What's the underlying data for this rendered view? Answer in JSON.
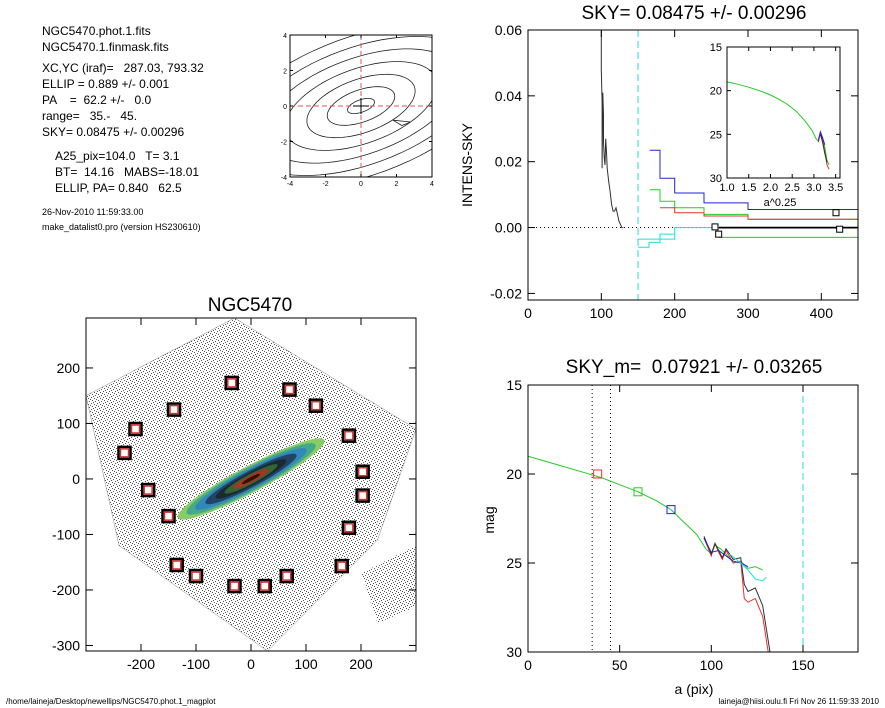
{
  "header": {
    "lines": [
      "NGC5470.phot.1.fits",
      "NGC5470.1.finmask.fits",
      "XC,YC (iraf)=   287.03, 793.32",
      "ELLIP = 0.889 +/- 0.001",
      "PA    =  62.2 +/-   0.0",
      "range=   35.-   45.",
      "SKY= 0.08475 +/- 0.00296",
      "A25_pix=104.0   T= 3.1",
      "BT=  14.16   MABS=-18.01",
      "ELLIP, PA= 0.840   62.5"
    ],
    "date_line": "26-Nov-2010 11:59:33.00",
    "version_line": "make_datalist0.pro (version HS230610)"
  },
  "footer": {
    "left": "/home/laineja/Desktop/newellips/NGC5470.phot.1_magplot",
    "right": "laineja@hiisi.oulu.fi  Fri Nov 26 11:59:33 2010"
  },
  "colors": {
    "red": "#e83030",
    "green": "#22cc22",
    "blue": "#2222dd",
    "cyan": "#22dddd",
    "black": "#000000",
    "dark": "#303030"
  },
  "chart_data": [
    {
      "id": "contour_panel",
      "type": "contour",
      "title": "",
      "xlim": [
        -4,
        4
      ],
      "ylim": [
        -4,
        4
      ],
      "xticks": [
        -4,
        -2,
        0,
        2,
        4
      ],
      "yticks": [
        -4,
        -2,
        0,
        2,
        4
      ],
      "tick_labels_x": [
        "-4",
        "-2",
        "0",
        "2",
        "4"
      ],
      "tick_labels_y": [
        "-4",
        "-2",
        "0",
        "2",
        "4"
      ],
      "guide_lines": {
        "x": 0,
        "y": 0,
        "color": "red",
        "style": "dashed"
      },
      "contour_angle_deg": 20,
      "contour_levels": [
        {
          "a": 0.8,
          "b": 0.35
        },
        {
          "a": 2.0,
          "b": 0.9
        },
        {
          "a": 3.2,
          "b": 1.5
        },
        {
          "a": 4.5,
          "b": 2.1
        },
        {
          "a": 5.8,
          "b": 2.7
        },
        {
          "a": 7.0,
          "b": 3.3
        },
        {
          "a": 8.3,
          "b": 3.9
        }
      ]
    },
    {
      "id": "galaxy_image",
      "type": "scatter",
      "title": "NGC5470",
      "xlim": [
        -300,
        300
      ],
      "ylim": [
        -310,
        290
      ],
      "xticks": [
        -200,
        -100,
        0,
        100,
        200
      ],
      "yticks": [
        -300,
        -200,
        -100,
        0,
        100,
        200
      ],
      "tick_labels_x": [
        "-200",
        "-100",
        "0",
        "100",
        "200"
      ],
      "tick_labels_y": [
        "-300",
        "-200",
        "-100",
        "0",
        "100",
        "200"
      ],
      "sky_boxes": [
        [
          -35,
          173
        ],
        [
          70,
          161
        ],
        [
          118,
          132
        ],
        [
          -140,
          125
        ],
        [
          -210,
          90
        ],
        [
          178,
          78
        ],
        [
          -230,
          47
        ],
        [
          203,
          13
        ],
        [
          -187,
          -20
        ],
        [
          203,
          -30
        ],
        [
          -150,
          -67
        ],
        [
          178,
          -88
        ],
        [
          -135,
          -155
        ],
        [
          165,
          -157
        ],
        [
          -100,
          -175
        ],
        [
          65,
          -175
        ],
        [
          -30,
          -193
        ],
        [
          25,
          -193
        ]
      ],
      "galaxy": {
        "center": [
          0,
          0
        ],
        "semi_major": 150,
        "ellipticity": 0.889,
        "angle_deg": -28
      }
    },
    {
      "id": "sky_profile",
      "type": "line",
      "title": "SKY= 0.08475 +/- 0.00296",
      "xlabel": "",
      "ylabel": "INTENS-SKY",
      "xlim": [
        0,
        450
      ],
      "ylim": [
        -0.022,
        0.06
      ],
      "xticks": [
        0,
        100,
        200,
        300,
        400
      ],
      "yticks": [
        -0.02,
        0.0,
        0.02,
        0.04,
        0.06
      ],
      "tick_labels_x": [
        "0",
        "100",
        "200",
        "300",
        "400"
      ],
      "tick_labels_y": [
        "-0.02",
        "0.00",
        "0.02",
        "0.04",
        "0.06"
      ],
      "vline": {
        "x": 150,
        "color": "cyan"
      },
      "zero_line": {
        "y": 0.0,
        "style": "dotted"
      },
      "series": [
        {
          "color": "dark",
          "x": [
            100,
            100,
            101,
            101,
            102,
            103,
            103,
            104,
            105,
            106,
            107,
            108,
            110,
            112,
            114,
            116,
            118,
            120,
            122,
            124,
            126,
            128,
            130
          ],
          "y": [
            0.06,
            0.048,
            0.038,
            0.018,
            0.041,
            0.034,
            0.026,
            0.021,
            0.019,
            0.027,
            0.023,
            0.018,
            0.014,
            0.011,
            0.007,
            0.005,
            0.005,
            0.006,
            0.004,
            0.002,
            0.001,
            0.0,
            0.0
          ]
        },
        {
          "color": "blue",
          "x": [
            166,
            180,
            180,
            200,
            200,
            240,
            240,
            300,
            300,
            450
          ],
          "y": [
            0.0235,
            0.0235,
            0.015,
            0.015,
            0.0105,
            0.0105,
            0.0075,
            0.0075,
            0.0055,
            0.0055
          ]
        },
        {
          "color": "green",
          "x": [
            166,
            180,
            180,
            200,
            200,
            240,
            240,
            300,
            300,
            450
          ],
          "y": [
            0.0115,
            0.0115,
            0.008,
            0.008,
            0.006,
            0.006,
            0.004,
            0.004,
            0.0025,
            0.0025
          ]
        },
        {
          "color": "red",
          "x": [
            180,
            200,
            200,
            240,
            240,
            300,
            300,
            450
          ],
          "y": [
            0.006,
            0.006,
            0.0045,
            0.0045,
            0.0035,
            0.0035,
            0.0025,
            0.0025
          ]
        },
        {
          "color": "black",
          "x": [
            260,
            450
          ],
          "y": [
            0.0,
            0.0
          ]
        },
        {
          "color": "green",
          "x": [
            260,
            450
          ],
          "y": [
            -0.003,
            -0.003
          ]
        },
        {
          "color": "cyan",
          "x": [
            150,
            165,
            165,
            180,
            180,
            200
          ],
          "y": [
            -0.006,
            -0.006,
            -0.0045,
            -0.0045,
            -0.002,
            -0.002
          ]
        },
        {
          "color": "cyan",
          "x": [
            150,
            200,
            200,
            260
          ],
          "y": [
            -0.0035,
            -0.0035,
            0.0,
            0.0
          ]
        }
      ],
      "markers": [
        [
          255,
          0.0002
        ],
        [
          260,
          -0.002
        ],
        [
          420,
          0.0045
        ],
        [
          425,
          -0.0005
        ]
      ]
    },
    {
      "id": "sky_inset",
      "type": "line",
      "title": "",
      "xlabel": "a^0.25",
      "ylabel": "",
      "xlim": [
        1.0,
        3.6
      ],
      "ylim": [
        30,
        15
      ],
      "xticks": [
        1.0,
        1.5,
        2.0,
        2.5,
        3.0,
        3.5
      ],
      "yticks": [
        15,
        20,
        25,
        30
      ],
      "tick_labels_x": [
        "1.0",
        "1.5",
        "2.0",
        "2.5",
        "3.0",
        "3.5"
      ],
      "tick_labels_y": [
        "15",
        "20",
        "25",
        "30"
      ],
      "series": [
        {
          "color": "green",
          "x": [
            1.0,
            1.2,
            1.5,
            1.8,
            2.0,
            2.2,
            2.4,
            2.6,
            2.8,
            2.95,
            3.05,
            3.1,
            3.15,
            3.2,
            3.25,
            3.3,
            3.35
          ],
          "y": [
            19.0,
            19.2,
            19.6,
            20.1,
            20.5,
            21.0,
            21.6,
            22.4,
            23.5,
            24.5,
            25.5,
            25.8,
            24.8,
            25.5,
            26.5,
            28.0,
            28.5
          ]
        },
        {
          "color": "red",
          "x": [
            3.1,
            3.15,
            3.2,
            3.25,
            3.3,
            3.35
          ],
          "y": [
            25.9,
            24.9,
            25.8,
            27.0,
            28.5,
            29.0
          ]
        },
        {
          "color": "blue",
          "x": [
            3.1,
            3.15,
            3.2,
            3.25
          ],
          "y": [
            25.7,
            24.7,
            25.4,
            26.2
          ]
        },
        {
          "color": "dark",
          "x": [
            3.15,
            3.2,
            3.25,
            3.3
          ],
          "y": [
            25.0,
            25.9,
            27.2,
            28.2
          ]
        }
      ]
    },
    {
      "id": "mag_profile",
      "type": "line",
      "title": "SKY_m=  0.07921 +/- 0.03265",
      "xlabel": "a (pix)",
      "ylabel": "mag",
      "xlim": [
        0,
        180
      ],
      "ylim": [
        30,
        15
      ],
      "xticks": [
        0,
        50,
        100,
        150
      ],
      "yticks": [
        15,
        20,
        25,
        30
      ],
      "tick_labels_x": [
        "0",
        "50",
        "100",
        "150"
      ],
      "tick_labels_y": [
        "15",
        "20",
        "25",
        "30"
      ],
      "vlines": [
        {
          "x": 35,
          "color": "black",
          "style": "dotted"
        },
        {
          "x": 45,
          "color": "black",
          "style": "dotted"
        },
        {
          "x": 150,
          "color": "cyan",
          "style": "dashed"
        }
      ],
      "series": [
        {
          "color": "green",
          "x": [
            0,
            10,
            20,
            30,
            40,
            50,
            60,
            70,
            78,
            85,
            92,
            97,
            100,
            102,
            105,
            108,
            112,
            116,
            120,
            124,
            128
          ],
          "y": [
            19.0,
            19.3,
            19.6,
            19.9,
            20.2,
            20.6,
            21.0,
            21.5,
            22.0,
            22.7,
            23.4,
            24.2,
            24.5,
            24.0,
            24.2,
            24.5,
            25.0,
            24.9,
            25.3,
            25.2,
            25.4
          ]
        },
        {
          "color": "red",
          "x": [
            96,
            100,
            102,
            104,
            106,
            108,
            112,
            116,
            118,
            120,
            124,
            128,
            131
          ],
          "y": [
            23.6,
            24.6,
            23.9,
            24.4,
            24.8,
            24.3,
            25.0,
            24.9,
            27.0,
            27.2,
            27.0,
            28.0,
            30.0
          ]
        },
        {
          "color": "dark",
          "x": [
            96,
            100,
            102,
            104,
            106,
            108,
            112,
            116,
            118,
            120,
            124,
            128,
            132
          ],
          "y": [
            23.5,
            24.5,
            23.9,
            24.3,
            24.7,
            24.2,
            24.8,
            24.7,
            26.2,
            26.6,
            26.4,
            27.4,
            30.0
          ]
        },
        {
          "color": "blue",
          "x": [
            96,
            100,
            104,
            108,
            112,
            116,
            120
          ],
          "y": [
            23.6,
            24.4,
            24.3,
            24.6,
            24.9,
            25.0,
            25.2
          ]
        },
        {
          "color": "cyan",
          "x": [
            110,
            116,
            120,
            124,
            128,
            130
          ],
          "y": [
            24.5,
            25.0,
            25.4,
            25.9,
            26.0,
            25.8
          ]
        }
      ],
      "markers": [
        {
          "x": 38,
          "y": 20.0,
          "color": "red"
        },
        {
          "x": 60,
          "y": 21.0,
          "color": "green"
        },
        {
          "x": 78,
          "y": 22.0,
          "color": "blue"
        }
      ]
    }
  ]
}
